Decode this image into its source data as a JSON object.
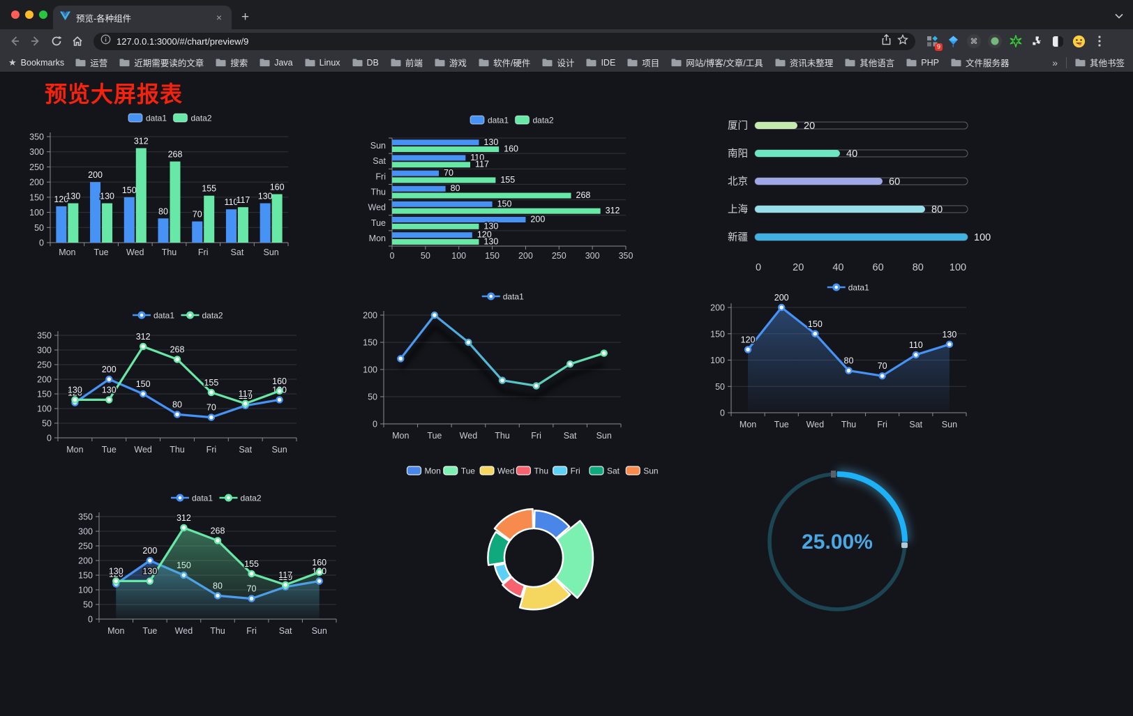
{
  "browser": {
    "tab": {
      "title": "预览-各种组件"
    },
    "close_tab_glyph": "×",
    "new_tab_glyph": "+",
    "url": "127.0.0.1:3000/#/chart/preview/9",
    "extensions_badge": "9",
    "bookmarks_bar": {
      "star_glyph": "★",
      "label": "Bookmarks",
      "folders": [
        "运营",
        "近期需要读的文章",
        "搜索",
        "Java",
        "Linux",
        "DB",
        "前端",
        "游戏",
        "软件/硬件",
        "设计",
        "IDE",
        "项目",
        "网站/博客/文章/工具",
        "资讯未整理",
        "其他语言",
        "PHP",
        "文件服务器"
      ],
      "overflow_glyph": "»",
      "other_bookmarks": "其他书签"
    }
  },
  "page": {
    "title": "预览大屏报表"
  },
  "chart_data": [
    {
      "id": "bar-grouped",
      "type": "bar",
      "categories": [
        "Mon",
        "Tue",
        "Wed",
        "Thu",
        "Fri",
        "Sat",
        "Sun"
      ],
      "series": [
        {
          "name": "data1",
          "color": "#4693f5",
          "values": [
            120,
            200,
            150,
            80,
            70,
            110,
            130
          ]
        },
        {
          "name": "data2",
          "color": "#67e8a7",
          "values": [
            130,
            130,
            312,
            268,
            155,
            117,
            160
          ]
        }
      ],
      "ylim": [
        0,
        350
      ],
      "yticks": [
        0,
        50,
        100,
        150,
        200,
        250,
        300,
        350
      ],
      "legend_position": "top",
      "grid": true,
      "data_labels": true
    },
    {
      "id": "bar-horizontal",
      "type": "hbar",
      "categories_bottom_to_top": [
        "Mon",
        "Tue",
        "Wed",
        "Thu",
        "Fri",
        "Sat",
        "Sun"
      ],
      "series": [
        {
          "name": "data1",
          "color": "#4693f5",
          "values": [
            120,
            200,
            150,
            80,
            70,
            110,
            130
          ]
        },
        {
          "name": "data2",
          "color": "#67e8a7",
          "values": [
            130,
            130,
            312,
            268,
            155,
            117,
            160
          ]
        }
      ],
      "xlim": [
        0,
        350
      ],
      "xticks": [
        0,
        50,
        100,
        150,
        200,
        250,
        300,
        350
      ],
      "legend_position": "top",
      "data_labels": true
    },
    {
      "id": "city-progress",
      "type": "progress",
      "items": [
        {
          "label": "厦门",
          "value": 20,
          "color": "#c4ebad"
        },
        {
          "label": "南阳",
          "value": 40,
          "color": "#6be6c1"
        },
        {
          "label": "北京",
          "value": 60,
          "color": "#a0a7e6"
        },
        {
          "label": "上海",
          "value": 80,
          "color": "#96dee8"
        },
        {
          "label": "新疆",
          "value": 100,
          "color": "#3fb1e3"
        }
      ],
      "xlim": [
        0,
        100
      ],
      "xticks": [
        0,
        20,
        40,
        60,
        80,
        100
      ]
    },
    {
      "id": "line-two-series",
      "type": "line",
      "categories": [
        "Mon",
        "Tue",
        "Wed",
        "Thu",
        "Fri",
        "Sat",
        "Sun"
      ],
      "series": [
        {
          "name": "data1",
          "color": "#4693f5",
          "values": [
            120,
            200,
            150,
            80,
            70,
            110,
            130
          ]
        },
        {
          "name": "data2",
          "color": "#67e8a7",
          "values": [
            130,
            130,
            312,
            268,
            155,
            117,
            160
          ]
        }
      ],
      "ylim": [
        0,
        350
      ],
      "yticks": [
        0,
        50,
        100,
        150,
        200,
        250,
        300,
        350
      ],
      "legend_position": "top",
      "data_labels": true
    },
    {
      "id": "line-gradient",
      "type": "line",
      "categories": [
        "Mon",
        "Tue",
        "Wed",
        "Thu",
        "Fri",
        "Sat",
        "Sun"
      ],
      "series": [
        {
          "name": "data1",
          "gradient": [
            "#4693f5",
            "#67e8a7"
          ],
          "values": [
            120,
            200,
            150,
            80,
            70,
            110,
            130
          ]
        }
      ],
      "ylim": [
        0,
        200
      ],
      "yticks": [
        0,
        50,
        100,
        150,
        200
      ],
      "legend_position": "top",
      "data_labels": false,
      "shadow": true
    },
    {
      "id": "area-single",
      "type": "area",
      "categories": [
        "Mon",
        "Tue",
        "Wed",
        "Thu",
        "Fri",
        "Sat",
        "Sun"
      ],
      "series": [
        {
          "name": "data1",
          "color": "#4693f5",
          "values": [
            120,
            200,
            150,
            80,
            70,
            110,
            130
          ],
          "area": true
        }
      ],
      "ylim": [
        0,
        200
      ],
      "yticks": [
        0,
        50,
        100,
        150,
        200
      ],
      "legend_position": "top",
      "data_labels": true
    },
    {
      "id": "area-two-series",
      "type": "area",
      "categories": [
        "Mon",
        "Tue",
        "Wed",
        "Thu",
        "Fri",
        "Sat",
        "Sun"
      ],
      "series": [
        {
          "name": "data1",
          "color": "#4693f5",
          "values": [
            120,
            200,
            150,
            80,
            70,
            110,
            130
          ],
          "area": true
        },
        {
          "name": "data2",
          "color": "#67e8a7",
          "values": [
            130,
            130,
            312,
            268,
            155,
            117,
            160
          ],
          "area": true
        }
      ],
      "ylim": [
        0,
        350
      ],
      "yticks": [
        0,
        50,
        100,
        150,
        200,
        250,
        300,
        350
      ],
      "legend_position": "top",
      "data_labels": true
    },
    {
      "id": "rose-pie",
      "type": "pie",
      "rose": true,
      "items": [
        {
          "label": "Mon",
          "value": 120,
          "color": "#4a86e8"
        },
        {
          "label": "Tue",
          "value": 200,
          "color": "#7cf0b1"
        },
        {
          "label": "Wed",
          "value": 150,
          "color": "#f5d760"
        },
        {
          "label": "Thu",
          "value": 80,
          "color": "#f7626f"
        },
        {
          "label": "Fri",
          "value": 70,
          "color": "#5ed0f5"
        },
        {
          "label": "Sat",
          "value": 110,
          "color": "#10a97e"
        },
        {
          "label": "Sun",
          "value": 130,
          "color": "#f78b4d"
        }
      ],
      "legend_position": "top"
    },
    {
      "id": "gauge-ring",
      "type": "gauge",
      "value": 25,
      "max": 100,
      "label": "25.00%",
      "arc_color": "#1db1f7",
      "track_color": "#1c4554",
      "text_color": "#4ba7e3"
    }
  ]
}
